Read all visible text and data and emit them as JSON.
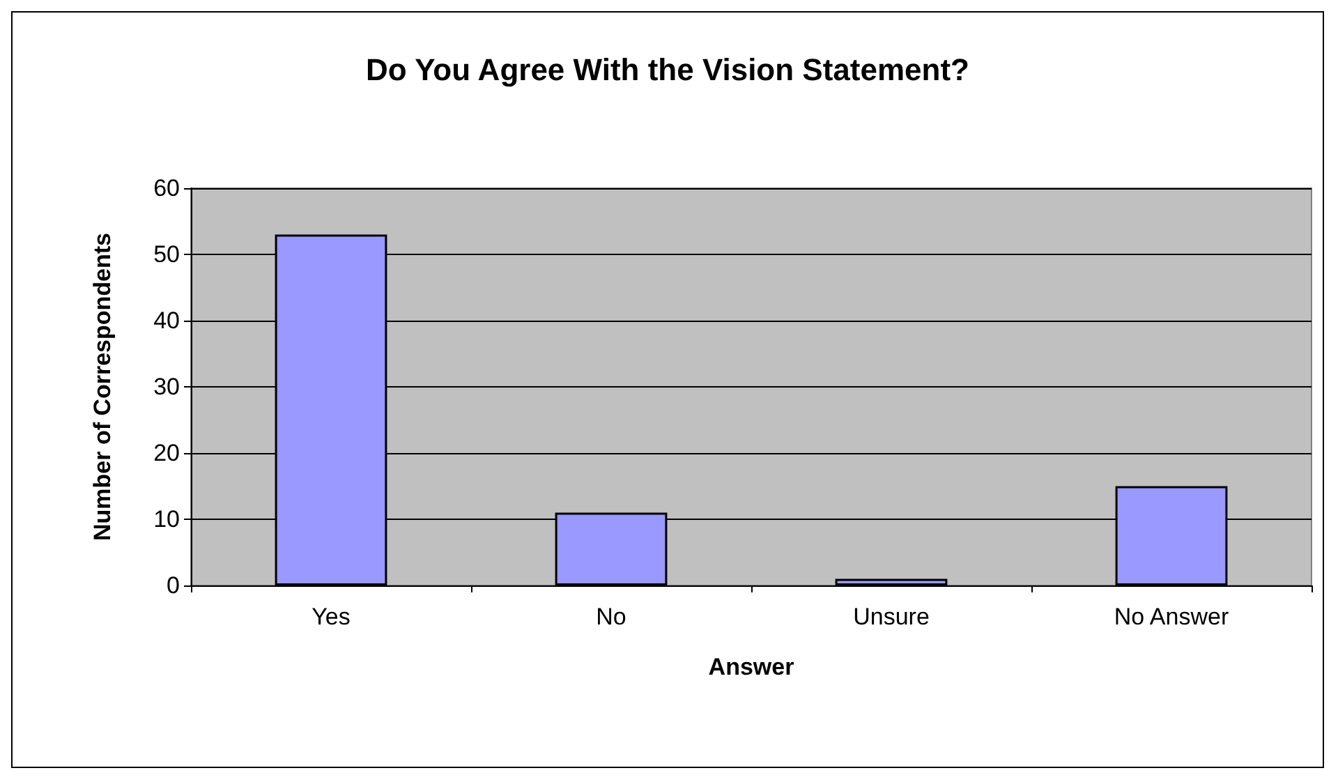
{
  "chart_data": {
    "type": "bar",
    "title": "Do You Agree With the Vision Statement?",
    "xlabel": "Answer",
    "ylabel": "Number of Correspondents",
    "categories": [
      "Yes",
      "No",
      "Unsure",
      "No Answer"
    ],
    "values": [
      53,
      11,
      1,
      15
    ],
    "color": "#9999ff",
    "ylim": [
      0,
      60
    ],
    "yticks": [
      0,
      10,
      20,
      30,
      40,
      50,
      60
    ],
    "grid": "y"
  }
}
